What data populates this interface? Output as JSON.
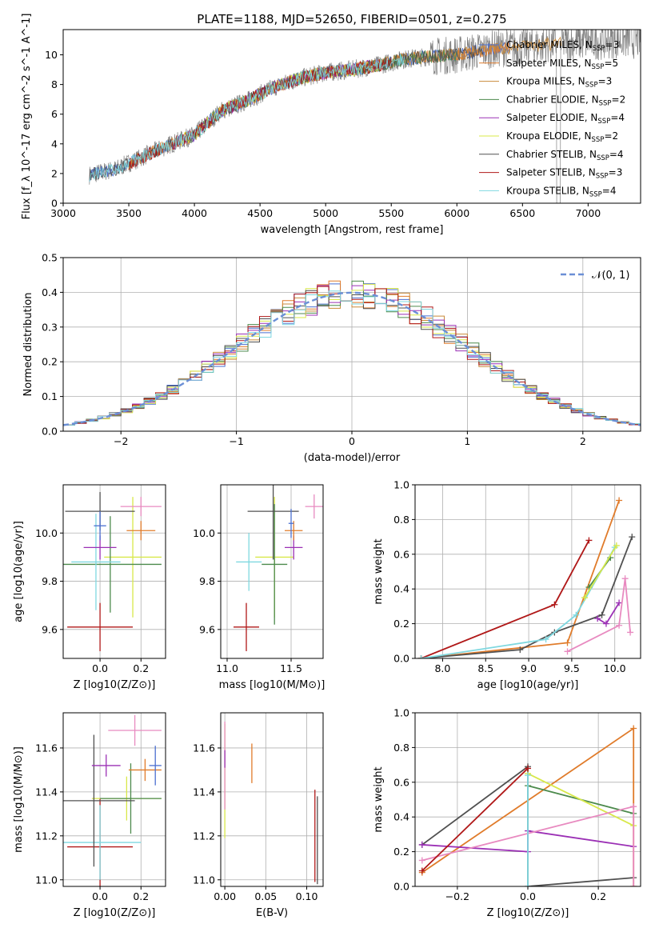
{
  "title": "PLATE=1188, MJD=52650, FIBERID=0501, z=0.275",
  "colors": {
    "chabrier_miles": "#4a6fd0",
    "salpeter_miles": "#e07b2a",
    "kroupa_miles": "#c98a3a",
    "chabrier_elodie": "#4c8a4c",
    "salpeter_elodie": "#9b30b5",
    "kroupa_elodie": "#d8e84a",
    "chabrier_stelib": "#505050",
    "salpeter_stelib": "#b01818",
    "kroupa_stelib": "#7fd8e0",
    "pink": "#e88ac0",
    "gaussian": "#6b8fd6"
  },
  "chart_data": [
    {
      "id": "spectrum",
      "type": "line",
      "xlabel": "wavelength [Angstrom, rest frame]",
      "ylabel": "Flux [f_λ 10^-17 erg cm^-2 s^-1 A^-1]",
      "xlim": [
        3000,
        7400
      ],
      "ylim": [
        0,
        11.7
      ],
      "xticks": [
        "3000",
        "3500",
        "4000",
        "4500",
        "5000",
        "5500",
        "6000",
        "6500",
        "7000"
      ],
      "yticks": [
        "0",
        "2",
        "4",
        "6",
        "8",
        "10"
      ],
      "grid": false,
      "legend_position": "right",
      "legend": [
        {
          "text": "Chabrier MILES, N_SSP=3",
          "color": "#4a6fd0"
        },
        {
          "text": "Salpeter MILES, N_SSP=5",
          "color": "#e07b2a"
        },
        {
          "text": "Kroupa MILES, N_SSP=3",
          "color": "#c98a3a"
        },
        {
          "text": "Chabrier ELODIE, N_SSP=2",
          "color": "#4c8a4c"
        },
        {
          "text": "Salpeter ELODIE, N_SSP=4",
          "color": "#9b30b5"
        },
        {
          "text": "Kroupa ELODIE, N_SSP=2",
          "color": "#d8e84a"
        },
        {
          "text": "Chabrier STELIB, N_SSP=4",
          "color": "#505050"
        },
        {
          "text": "Salpeter STELIB, N_SSP=3",
          "color": "#b01818"
        },
        {
          "text": "Kroupa STELIB, N_SSP=4",
          "color": "#7fd8e0"
        }
      ],
      "x_anchor": [
        3200,
        3400,
        3600,
        3800,
        4000,
        4200,
        4400,
        4600,
        4800,
        5000,
        5200,
        5400,
        5600,
        5800,
        6000,
        6200,
        6400,
        6600,
        6800,
        7000,
        7200
      ],
      "y_anchor": [
        1.9,
        2.3,
        3.1,
        3.9,
        4.6,
        6.2,
        6.9,
        7.8,
        8.4,
        8.8,
        9.0,
        9.3,
        9.7,
        9.9,
        10.0,
        10.3,
        10.5,
        10.6,
        10.8,
        10.9,
        11.0
      ]
    },
    {
      "id": "residuals",
      "type": "bar",
      "xlabel": "(data-model)/error",
      "ylabel": "Normed distribution",
      "xlim": [
        -2.5,
        2.5
      ],
      "ylim": [
        0,
        0.5
      ],
      "xticks": [
        "−2",
        "−1",
        "0",
        "1",
        "2"
      ],
      "yticks": [
        "0.0",
        "0.1",
        "0.2",
        "0.3",
        "0.4",
        "0.5"
      ],
      "grid": true,
      "legend_position": "top-right",
      "legend": [
        {
          "text": "𝒩(0, 1)",
          "color": "#6b8fd6"
        }
      ],
      "bin_width": 0.1
    },
    {
      "id": "age_vs_Z",
      "type": "scatter",
      "xlabel": "Z [log10(Z/Z⊙)]",
      "ylabel": "age  [log10(age/yr)]",
      "xlim": [
        -0.18,
        0.32
      ],
      "ylim": [
        9.48,
        10.2
      ],
      "xticks": [
        "0.0",
        "0.2"
      ],
      "yticks": [
        "9.6",
        "9.8",
        "10.0"
      ],
      "grid": true,
      "points": [
        {
          "x": 0.0,
          "y": 9.61,
          "xerr": 0.16,
          "yerr": 0.1,
          "color": "#b01818"
        },
        {
          "x": 0.16,
          "y": 9.9,
          "xerr": 0.14,
          "yerr": 0.25,
          "color": "#d8e84a"
        },
        {
          "x": 0.05,
          "y": 9.87,
          "xerr": 0.25,
          "yerr": 0.2,
          "color": "#4c8a4c"
        },
        {
          "x": -0.02,
          "y": 9.88,
          "xerr": 0.12,
          "yerr": 0.2,
          "color": "#7fd8e0"
        },
        {
          "x": 0.0,
          "y": 10.09,
          "xerr": 0.17,
          "yerr": 0.08,
          "color": "#505050"
        },
        {
          "x": 0.0,
          "y": 9.94,
          "xerr": 0.08,
          "yerr": 0.05,
          "color": "#9b30b5"
        },
        {
          "x": 0.2,
          "y": 10.01,
          "xerr": 0.07,
          "yerr": 0.04,
          "color": "#e07b2a"
        },
        {
          "x": 0.2,
          "y": 10.11,
          "xerr": 0.1,
          "yerr": 0.04,
          "color": "#e88ac0"
        },
        {
          "x": 0.0,
          "y": 10.03,
          "xerr": 0.03,
          "yerr": 0.06,
          "color": "#4a6fd0"
        }
      ]
    },
    {
      "id": "age_vs_mass",
      "type": "scatter",
      "xlabel": "mass [log10(M/M⊙)]",
      "ylabel": "",
      "xlim": [
        10.95,
        11.75
      ],
      "ylim": [
        9.48,
        10.2
      ],
      "xticks": [
        "11.0",
        "11.5"
      ],
      "yticks": [
        "9.6",
        "9.8",
        "10.0"
      ],
      "grid": true,
      "points": [
        {
          "x": 11.15,
          "y": 9.61,
          "xerr": 0.1,
          "yerr": 0.1,
          "color": "#b01818"
        },
        {
          "x": 11.37,
          "y": 9.9,
          "xerr": 0.15,
          "yerr": 0.25,
          "color": "#d8e84a"
        },
        {
          "x": 11.37,
          "y": 9.87,
          "xerr": 0.1,
          "yerr": 0.25,
          "color": "#4c8a4c"
        },
        {
          "x": 11.17,
          "y": 9.88,
          "xerr": 0.1,
          "yerr": 0.12,
          "color": "#7fd8e0"
        },
        {
          "x": 11.36,
          "y": 10.09,
          "xerr": 0.2,
          "yerr": 0.2,
          "color": "#505050"
        },
        {
          "x": 11.52,
          "y": 9.94,
          "xerr": 0.07,
          "yerr": 0.05,
          "color": "#9b30b5"
        },
        {
          "x": 11.52,
          "y": 10.01,
          "xerr": 0.07,
          "yerr": 0.04,
          "color": "#e07b2a"
        },
        {
          "x": 11.68,
          "y": 10.11,
          "xerr": 0.07,
          "yerr": 0.05,
          "color": "#e88ac0"
        },
        {
          "x": 11.5,
          "y": 10.04,
          "xerr": 0.02,
          "yerr": 0.06,
          "color": "#4a6fd0"
        }
      ]
    },
    {
      "id": "weight_vs_age",
      "type": "line",
      "xlabel": "age  [log10(age/yr)]",
      "ylabel": "mass weight",
      "xlim": [
        7.68,
        10.3
      ],
      "ylim": [
        0,
        1.0
      ],
      "xticks": [
        "8.0",
        "8.5",
        "9.0",
        "9.5",
        "10.0"
      ],
      "yticks": [
        "0.0",
        "0.2",
        "0.4",
        "0.6",
        "0.8",
        "1.0"
      ],
      "grid": true,
      "series": [
        {
          "color": "#b01818",
          "x": [
            7.75,
            9.3,
            9.7
          ],
          "y": [
            0.0,
            0.31,
            0.68
          ]
        },
        {
          "color": "#e07b2a",
          "x": [
            7.75,
            9.45,
            10.05
          ],
          "y": [
            0.0,
            0.09,
            0.91
          ]
        },
        {
          "color": "#505050",
          "x": [
            7.75,
            8.9,
            9.3,
            9.85,
            10.2
          ],
          "y": [
            0.0,
            0.05,
            0.15,
            0.25,
            0.7
          ]
        },
        {
          "color": "#7fd8e0",
          "x": [
            7.75,
            9.2,
            9.55,
            10.0
          ],
          "y": [
            0.0,
            0.11,
            0.25,
            0.64
          ]
        },
        {
          "color": "#4c8a4c",
          "x": [
            9.7,
            9.95
          ],
          "y": [
            0.41,
            0.58
          ]
        },
        {
          "color": "#d8e84a",
          "x": [
            9.65,
            10.02
          ],
          "y": [
            0.35,
            0.65
          ]
        },
        {
          "color": "#9b30b5",
          "x": [
            9.8,
            9.9,
            10.05
          ],
          "y": [
            0.23,
            0.2,
            0.32
          ]
        },
        {
          "color": "#e88ac0",
          "x": [
            9.45,
            10.05,
            10.12,
            10.18
          ],
          "y": [
            0.04,
            0.19,
            0.46,
            0.15
          ]
        }
      ]
    },
    {
      "id": "mass_vs_Z",
      "type": "scatter",
      "xlabel": "Z [log10(Z/Z⊙)]",
      "ylabel": "mass [log10(M/M⊙)]",
      "xlim": [
        -0.18,
        0.32
      ],
      "ylim": [
        10.97,
        11.76
      ],
      "xticks": [
        "0.0",
        "0.2"
      ],
      "yticks": [
        "11.0",
        "11.2",
        "11.4",
        "11.6"
      ],
      "grid": true,
      "points": [
        {
          "x": 0.0,
          "y": 11.15,
          "xerr": 0.16,
          "yerr": 0.22,
          "color": "#b01818"
        },
        {
          "x": 0.13,
          "y": 11.37,
          "xerr": 0.17,
          "yerr": 0.1,
          "color": "#d8e84a"
        },
        {
          "x": 0.15,
          "y": 11.37,
          "xerr": 0.15,
          "yerr": 0.16,
          "color": "#4c8a4c"
        },
        {
          "x": 0.0,
          "y": 11.17,
          "xerr": 0.2,
          "yerr": 0.17,
          "color": "#7fd8e0"
        },
        {
          "x": -0.03,
          "y": 11.36,
          "xerr": 0.2,
          "yerr": 0.3,
          "color": "#505050"
        },
        {
          "x": 0.03,
          "y": 11.52,
          "xerr": 0.07,
          "yerr": 0.05,
          "color": "#9b30b5"
        },
        {
          "x": 0.22,
          "y": 11.5,
          "xerr": 0.08,
          "yerr": 0.05,
          "color": "#e07b2a"
        },
        {
          "x": 0.17,
          "y": 11.68,
          "xerr": 0.13,
          "yerr": 0.07,
          "color": "#e88ac0"
        },
        {
          "x": 0.27,
          "y": 11.52,
          "xerr": 0.03,
          "yerr": 0.09,
          "color": "#4a6fd0"
        }
      ]
    },
    {
      "id": "mass_vs_ebv",
      "type": "scatter",
      "xlabel": "E(B-V)",
      "ylabel": "",
      "xlim": [
        -0.005,
        0.12
      ],
      "ylim": [
        10.97,
        11.76
      ],
      "xticks": [
        "0.00",
        "0.05",
        "0.10"
      ],
      "yticks": [
        "11.0",
        "11.2",
        "11.4",
        "11.6"
      ],
      "grid": true,
      "points": [
        {
          "x": 0.0,
          "y": 11.45,
          "xerr": 0,
          "yerr": 0.26,
          "color": "#d8e84a"
        },
        {
          "x": 0.0,
          "y": 11.52,
          "xerr": 0,
          "yerr": 0.2,
          "color": "#e88ac0"
        },
        {
          "x": 0.0,
          "y": 11.55,
          "xerr": 0,
          "yerr": 0.04,
          "color": "#9b30b5"
        },
        {
          "x": 0.033,
          "y": 11.53,
          "xerr": 0,
          "yerr": 0.09,
          "color": "#e07b2a"
        },
        {
          "x": 0.11,
          "y": 11.2,
          "xerr": 0,
          "yerr": 0.21,
          "color": "#b01818"
        },
        {
          "x": 0.113,
          "y": 11.18,
          "xerr": 0,
          "yerr": 0.2,
          "color": "#505050"
        }
      ]
    },
    {
      "id": "weight_vs_Z",
      "type": "line",
      "xlabel": "Z [log10(Z/Z⊙)]",
      "ylabel": "mass weight",
      "xlim": [
        -0.32,
        0.32
      ],
      "ylim": [
        0,
        1.0
      ],
      "xticks": [
        "−0.2",
        "0.0",
        "0.2"
      ],
      "yticks": [
        "0.0",
        "0.2",
        "0.4",
        "0.6",
        "0.8",
        "1.0"
      ],
      "grid": true,
      "series": [
        {
          "color": "#505050",
          "x": [
            -0.3,
            0.0,
            0.0,
            0.3
          ],
          "y": [
            0.24,
            0.69,
            0.0,
            0.05
          ]
        },
        {
          "color": "#e07b2a",
          "x": [
            -0.3,
            0.3,
            0.3
          ],
          "y": [
            0.08,
            0.91,
            0.0
          ]
        },
        {
          "color": "#4c8a4c",
          "x": [
            0.0,
            0.3
          ],
          "y": [
            0.58,
            0.42
          ]
        },
        {
          "color": "#d8e84a",
          "x": [
            0.0,
            0.3
          ],
          "y": [
            0.65,
            0.35
          ]
        },
        {
          "color": "#9b30b5",
          "x": [
            -0.3,
            0.0,
            0.0,
            0.3
          ],
          "y": [
            0.24,
            0.2,
            0.32,
            0.23
          ]
        },
        {
          "color": "#e88ac0",
          "x": [
            -0.3,
            0.3,
            0.3
          ],
          "y": [
            0.15,
            0.46,
            0.0
          ]
        },
        {
          "color": "#7fd8e0",
          "x": [
            0.0,
            0.0
          ],
          "y": [
            0.0,
            0.64
          ]
        },
        {
          "color": "#b01818",
          "x": [
            -0.3,
            0.0
          ],
          "y": [
            0.09,
            0.68
          ]
        }
      ]
    }
  ]
}
